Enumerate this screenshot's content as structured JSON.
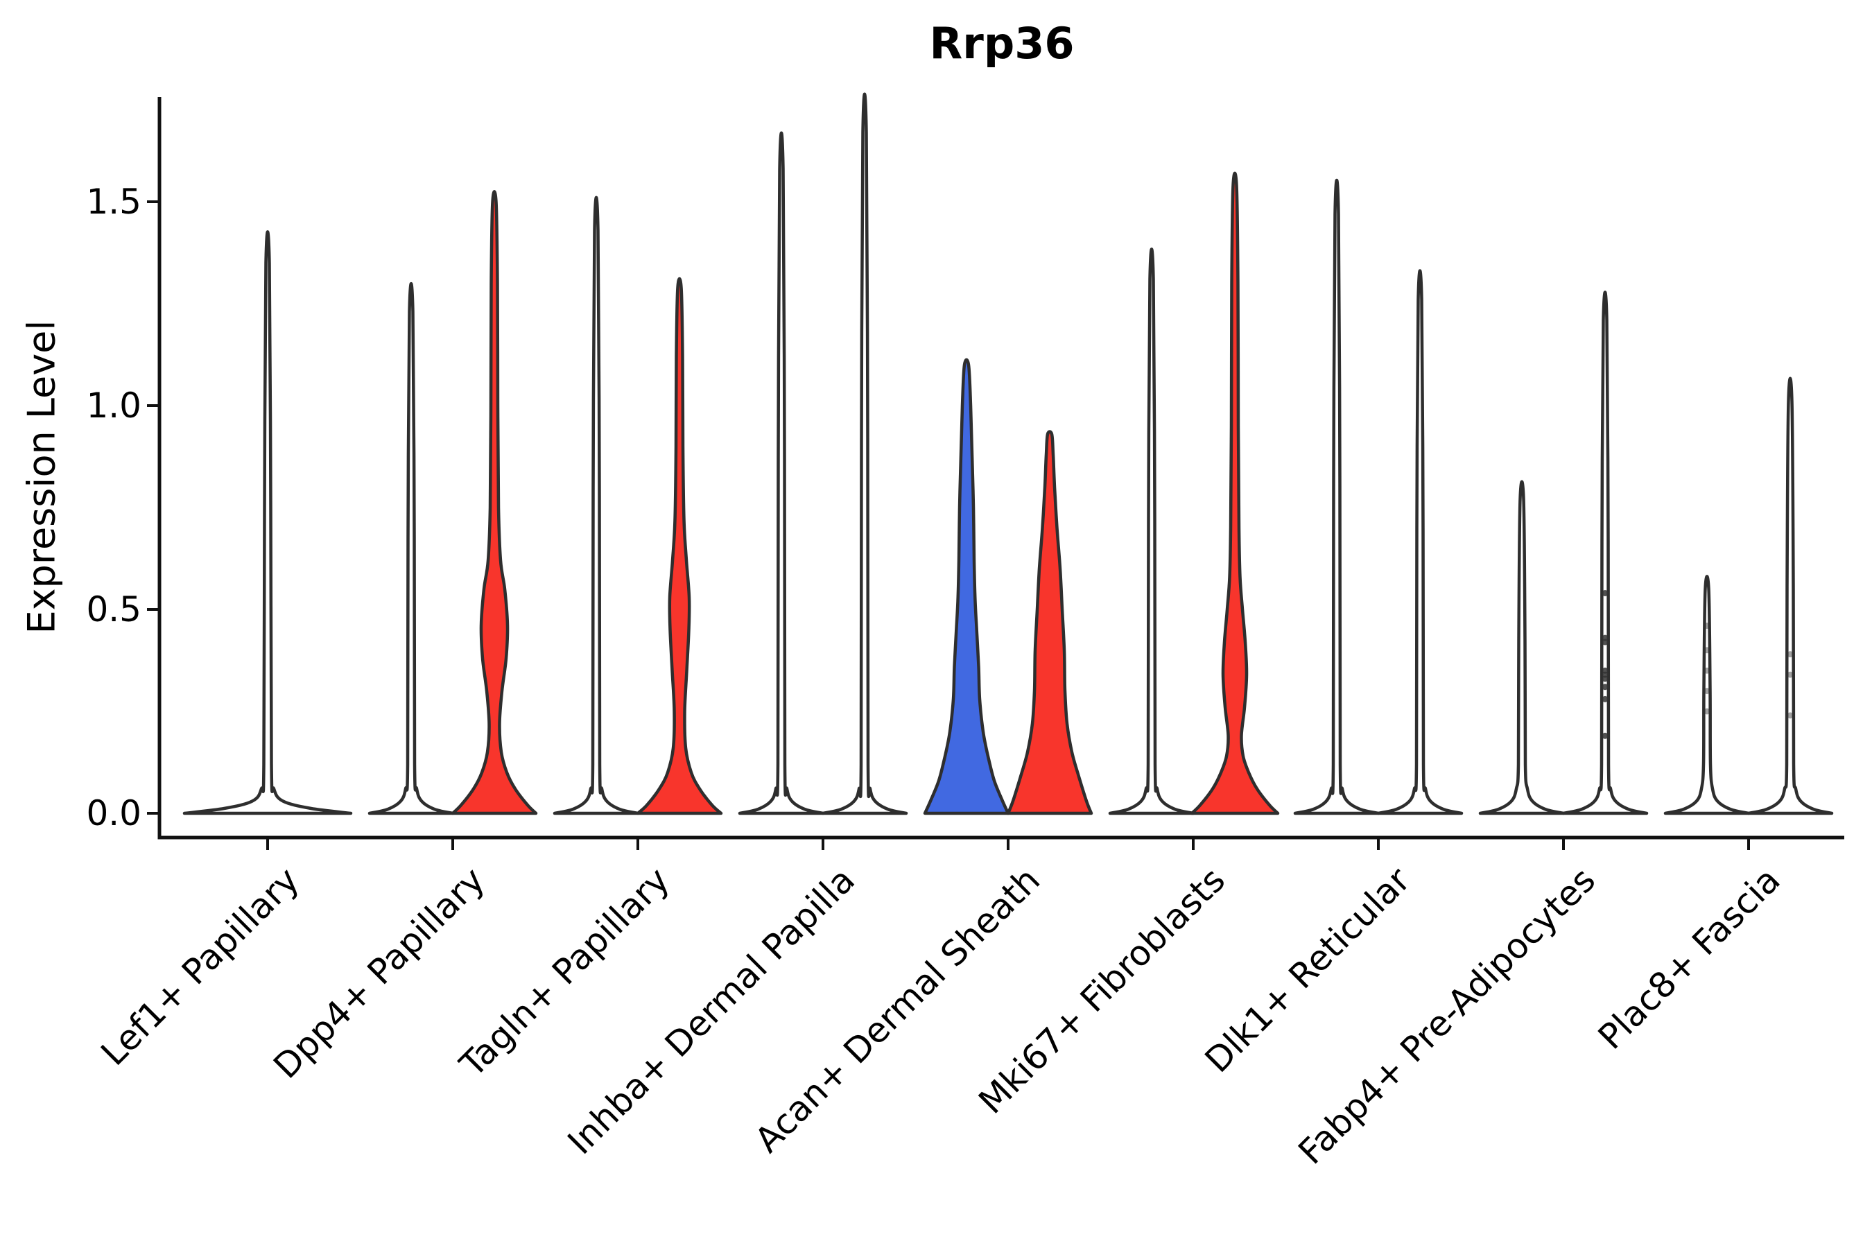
{
  "palette": {
    "red": "#F8352C",
    "blue": "#4169E1",
    "outline": "#2E2E2E",
    "axis": "#111111",
    "dot": "#333333",
    "background": "#FFFFFF"
  },
  "chart_data": {
    "type": "violin",
    "title": "Rrp36",
    "ylabel": "Expression Level",
    "xlabel": "",
    "ylim": [
      0,
      1.75
    ],
    "yticks": [
      0.0,
      0.5,
      1.0,
      1.5
    ],
    "ytick_labels": [
      "0.0",
      "0.5",
      "1.0",
      "1.5"
    ],
    "grid": false,
    "legend_position": "none",
    "categories": [
      "Lef1+ Papillary",
      "Dpp4+ Papillary",
      "Tagln+ Papillary",
      "Inhba+ Dermal Papilla",
      "Acan+ Dermal Sheath",
      "Mki67+ Fibroblasts",
      "Dlk1+ Reticular",
      "Fabp4+ Pre-Adipocytes",
      "Plac8+ Fascia"
    ],
    "groups": [
      {
        "category": "Lef1+ Papillary",
        "violins": [
          {
            "side": "center",
            "fill": "#FFFFFF",
            "max": 1.35,
            "shape": "profile",
            "base_halfwidth": 120,
            "profile": [
              [
                0,
                120
              ],
              [
                0.012,
                62
              ],
              [
                0.03,
                22
              ],
              [
                0.06,
                9
              ],
              [
                0.12,
                5.5
              ],
              [
                0.74,
                4.5
              ],
              [
                1.35,
                2.5
              ]
            ],
            "points": []
          }
        ]
      },
      {
        "category": "Dpp4+ Papillary",
        "violins": [
          {
            "side": "left",
            "fill": "#FFFFFF",
            "max": 1.23,
            "shape": "spike",
            "base_halfwidth": 60,
            "points": []
          },
          {
            "side": "right",
            "fill": "#F8352C",
            "max": 1.5,
            "shape": "profile",
            "base_halfwidth": 60,
            "profile": [
              [
                0,
                60
              ],
              [
                0.02,
                48
              ],
              [
                0.06,
                30
              ],
              [
                0.1,
                18
              ],
              [
                0.15,
                10
              ],
              [
                0.22,
                7.5
              ],
              [
                0.3,
                11
              ],
              [
                0.38,
                17
              ],
              [
                0.46,
                19
              ],
              [
                0.55,
                15
              ],
              [
                0.62,
                9
              ],
              [
                0.75,
                6
              ],
              [
                1.0,
                5
              ],
              [
                1.3,
                4.5
              ],
              [
                1.5,
                2.5
              ]
            ],
            "points": []
          }
        ]
      },
      {
        "category": "Tagln+ Papillary",
        "violins": [
          {
            "side": "left",
            "fill": "#FFFFFF",
            "max": 1.43,
            "shape": "spike",
            "base_halfwidth": 60,
            "points": []
          },
          {
            "side": "right",
            "fill": "#F8352C",
            "max": 1.29,
            "shape": "profile",
            "base_halfwidth": 60,
            "profile": [
              [
                0,
                60
              ],
              [
                0.02,
                47
              ],
              [
                0.06,
                29
              ],
              [
                0.1,
                17
              ],
              [
                0.16,
                9
              ],
              [
                0.25,
                7.5
              ],
              [
                0.35,
                10.5
              ],
              [
                0.45,
                13.5
              ],
              [
                0.53,
                14
              ],
              [
                0.62,
                10
              ],
              [
                0.72,
                6.5
              ],
              [
                0.9,
                5
              ],
              [
                1.12,
                4.5
              ],
              [
                1.29,
                2.5
              ]
            ],
            "points": []
          }
        ]
      },
      {
        "category": "Inhba+ Dermal Papilla",
        "violins": [
          {
            "side": "left",
            "fill": "#FFFFFF",
            "max": 1.58,
            "shape": "spike",
            "base_halfwidth": 60,
            "points": []
          },
          {
            "side": "right",
            "fill": "#FFFFFF",
            "max": 1.67,
            "shape": "spike",
            "base_halfwidth": 60,
            "points": []
          }
        ]
      },
      {
        "category": "Acan+ Dermal Sheath",
        "violins": [
          {
            "side": "left",
            "fill": "#4169E1",
            "max": 1.1,
            "shape": "profile",
            "base_halfwidth": 60,
            "profile": [
              [
                0,
                60
              ],
              [
                0.03,
                52
              ],
              [
                0.08,
                40
              ],
              [
                0.14,
                31
              ],
              [
                0.2,
                24
              ],
              [
                0.28,
                19
              ],
              [
                0.36,
                17.5
              ],
              [
                0.44,
                15
              ],
              [
                0.52,
                12.5
              ],
              [
                0.62,
                11
              ],
              [
                0.75,
                10
              ],
              [
                0.88,
                8
              ],
              [
                1.0,
                6
              ],
              [
                1.1,
                3
              ]
            ],
            "points": []
          },
          {
            "side": "right",
            "fill": "#F8352C",
            "max": 0.93,
            "shape": "profile",
            "base_halfwidth": 60,
            "profile": [
              [
                0,
                60
              ],
              [
                0.03,
                53
              ],
              [
                0.09,
                42
              ],
              [
                0.15,
                32
              ],
              [
                0.22,
                25
              ],
              [
                0.3,
                22
              ],
              [
                0.4,
                21
              ],
              [
                0.5,
                18
              ],
              [
                0.6,
                15
              ],
              [
                0.7,
                10.5
              ],
              [
                0.8,
                7
              ],
              [
                0.88,
                5
              ],
              [
                0.93,
                3
              ]
            ],
            "points": []
          }
        ]
      },
      {
        "category": "Mki67+ Fibroblasts",
        "violins": [
          {
            "side": "left",
            "fill": "#FFFFFF",
            "max": 1.31,
            "shape": "spike",
            "base_halfwidth": 60,
            "points": []
          },
          {
            "side": "right",
            "fill": "#F8352C",
            "max": 1.54,
            "shape": "profile",
            "base_halfwidth": 62,
            "profile": [
              [
                0,
                62
              ],
              [
                0.02,
                50
              ],
              [
                0.06,
                32
              ],
              [
                0.1,
                20
              ],
              [
                0.14,
                12
              ],
              [
                0.19,
                9.5
              ],
              [
                0.26,
                14
              ],
              [
                0.34,
                17
              ],
              [
                0.42,
                15
              ],
              [
                0.5,
                11
              ],
              [
                0.58,
                7.5
              ],
              [
                0.7,
                6
              ],
              [
                0.95,
                5
              ],
              [
                1.3,
                4.5
              ],
              [
                1.54,
                2.5
              ]
            ],
            "points": []
          }
        ]
      },
      {
        "category": "Dlk1+ Reticular",
        "violins": [
          {
            "side": "left",
            "fill": "#FFFFFF",
            "max": 1.47,
            "shape": "spike",
            "base_halfwidth": 60,
            "points": []
          },
          {
            "side": "right",
            "fill": "#FFFFFF",
            "max": 1.26,
            "shape": "spike",
            "base_halfwidth": 60,
            "points": []
          }
        ]
      },
      {
        "category": "Fabp4+ Pre-Adipocytes",
        "violins": [
          {
            "side": "left",
            "fill": "#FFFFFF",
            "max": 0.77,
            "shape": "spike",
            "base_halfwidth": 60,
            "points": []
          },
          {
            "side": "right",
            "fill": "#FFFFFF",
            "max": 1.21,
            "shape": "spike",
            "base_halfwidth": 60,
            "points": [
              0.54,
              0.43,
              0.42,
              0.35,
              0.34,
              0.33,
              0.31,
              0.28,
              0.19
            ],
            "points_opacity": 0.85
          }
        ]
      },
      {
        "category": "Plac8+ Fascia",
        "violins": [
          {
            "side": "left",
            "fill": "#FFFFFF",
            "max": 0.55,
            "shape": "spike",
            "base_halfwidth": 60,
            "points": [
              0.46,
              0.4,
              0.35,
              0.3,
              0.25
            ],
            "points_opacity": 0.45
          },
          {
            "side": "right",
            "fill": "#FFFFFF",
            "max": 1.01,
            "shape": "spike",
            "base_halfwidth": 60,
            "points": [
              0.39,
              0.34,
              0.24
            ],
            "points_opacity": 0.45
          }
        ]
      }
    ]
  }
}
